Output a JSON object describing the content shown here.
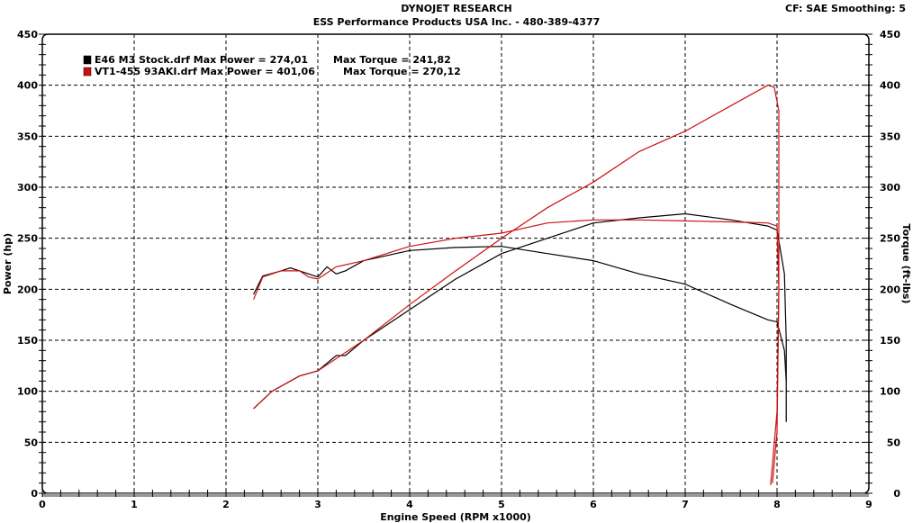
{
  "header": {
    "title": "DYNOJET RESEARCH",
    "subtitle": "ESS Performance Products USA Inc. - 480-389-4377",
    "settings": "CF: SAE  Smoothing: 5"
  },
  "chart_data": {
    "type": "line",
    "xlabel": "Engine Speed (RPM x1000)",
    "ylabel": "Power (hp)",
    "y2label": "Torque (ft-lbs)",
    "xlim": [
      0,
      9
    ],
    "ylim": [
      0,
      450
    ],
    "y2lim": [
      0,
      450
    ],
    "xticks": [
      0,
      1,
      2,
      3,
      4,
      5,
      6,
      7,
      8,
      9
    ],
    "yticks": [
      0,
      50,
      100,
      150,
      200,
      250,
      300,
      350,
      400,
      450
    ],
    "grid": true,
    "legend_position": "top-left",
    "legend": [
      {
        "text": "E46 M3 Stock.drf Max Power = 274,01",
        "torque_text": "Max Torque = 241,82",
        "color": "#000000"
      },
      {
        "text": "VT1-455 93AKI.drf Max Power = 401,06",
        "torque_text": "Max Torque = 270,12",
        "color": "#cc1111"
      }
    ],
    "series": [
      {
        "name": "E46 M3 Stock.drf",
        "quantity": "power",
        "color": "#000000",
        "x": [
          2.3,
          2.5,
          2.8,
          3.0,
          3.2,
          3.3,
          3.5,
          4.0,
          4.5,
          5.0,
          5.5,
          6.0,
          6.5,
          7.0,
          7.5,
          7.9,
          8.0,
          8.08,
          8.1,
          8.1
        ],
        "y": [
          83,
          100,
          115,
          120,
          135,
          135,
          150,
          180,
          210,
          235,
          250,
          265,
          270,
          274,
          268,
          262,
          258,
          215,
          150,
          70
        ]
      },
      {
        "name": "E46 M3 Stock.drf",
        "quantity": "torque",
        "color": "#000000",
        "x": [
          2.3,
          2.4,
          2.6,
          2.7,
          2.9,
          3.0,
          3.1,
          3.2,
          3.3,
          3.5,
          4.0,
          4.5,
          5.0,
          5.5,
          6.0,
          6.5,
          7.0,
          7.5,
          7.9,
          8.0,
          8.08,
          8.1
        ],
        "y": [
          195,
          213,
          218,
          221,
          215,
          212,
          222,
          215,
          218,
          228,
          238,
          241,
          242,
          235,
          228,
          215,
          205,
          185,
          170,
          168,
          140,
          110
        ]
      },
      {
        "name": "VT1-455 93AKI.drf",
        "quantity": "power",
        "color": "#cc1111",
        "x": [
          2.3,
          2.5,
          2.8,
          3.0,
          3.5,
          4.0,
          4.5,
          5.0,
          5.5,
          6.0,
          6.5,
          7.0,
          7.5,
          7.9,
          7.97,
          8.02,
          8.02,
          8.0,
          7.95
        ],
        "y": [
          83,
          100,
          115,
          120,
          150,
          185,
          218,
          250,
          280,
          305,
          335,
          355,
          380,
          400,
          398,
          375,
          200,
          60,
          10
        ]
      },
      {
        "name": "VT1-455 93AKI.drf",
        "quantity": "torque",
        "color": "#cc1111",
        "x": [
          2.3,
          2.4,
          2.6,
          2.8,
          2.9,
          3.0,
          3.2,
          3.5,
          4.0,
          4.5,
          5.0,
          5.5,
          6.0,
          6.5,
          7.0,
          7.5,
          7.9,
          8.0,
          8.02,
          8.0,
          7.93
        ],
        "y": [
          190,
          212,
          218,
          218,
          212,
          210,
          222,
          228,
          242,
          250,
          255,
          265,
          268,
          268,
          267,
          266,
          265,
          262,
          200,
          80,
          8
        ]
      }
    ]
  }
}
